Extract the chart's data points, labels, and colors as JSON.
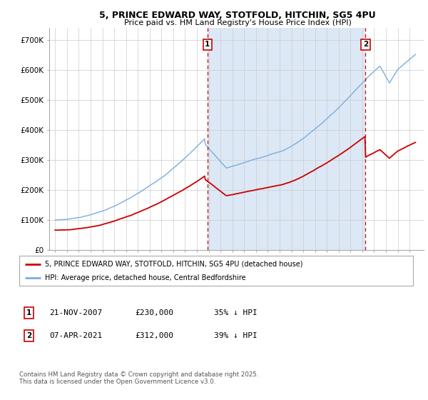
{
  "title1": "5, PRINCE EDWARD WAY, STOTFOLD, HITCHIN, SG5 4PU",
  "title2": "Price paid vs. HM Land Registry's House Price Index (HPI)",
  "bg_color": "#ffffff",
  "fill_color": "#dce8f5",
  "grid_color": "#cccccc",
  "hpi_color": "#7aade0",
  "price_color": "#cc0000",
  "vline_color": "#cc0000",
  "marker1_year": 2007.9,
  "marker2_year": 2021.27,
  "legend_line1": "5, PRINCE EDWARD WAY, STOTFOLD, HITCHIN, SG5 4PU (detached house)",
  "legend_line2": "HPI: Average price, detached house, Central Bedfordshire",
  "footnote": "Contains HM Land Registry data © Crown copyright and database right 2025.\nThis data is licensed under the Open Government Licence v3.0.",
  "yticks": [
    0,
    100000,
    200000,
    300000,
    400000,
    500000,
    600000,
    700000
  ],
  "ytick_labels": [
    "£0",
    "£100K",
    "£200K",
    "£300K",
    "£400K",
    "£500K",
    "£600K",
    "£700K"
  ]
}
